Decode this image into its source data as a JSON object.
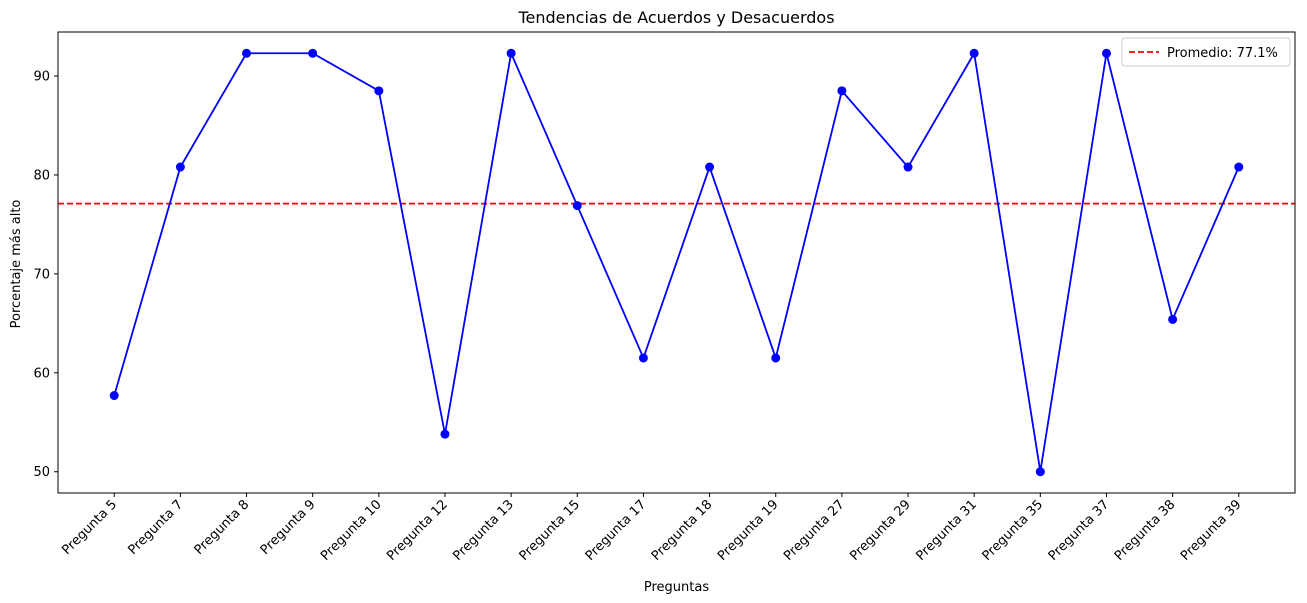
{
  "chart_data": {
    "type": "line",
    "title": "Tendencias de Acuerdos y Desacuerdos",
    "xlabel": "Preguntas",
    "ylabel": "Porcentaje más alto",
    "categories": [
      "Pregunta 5",
      "Pregunta 7",
      "Pregunta 8",
      "Pregunta 9",
      "Pregunta 10",
      "Pregunta 12",
      "Pregunta 13",
      "Pregunta 15",
      "Pregunta 17",
      "Pregunta 18",
      "Pregunta 19",
      "Pregunta 27",
      "Pregunta 29",
      "Pregunta 31",
      "Pregunta 35",
      "Pregunta 37",
      "Pregunta 38",
      "Pregunta 39"
    ],
    "series": [
      {
        "color": "#0000ff",
        "marker": "circle",
        "values": [
          57.7,
          80.8,
          92.3,
          92.3,
          88.5,
          53.8,
          92.3,
          76.9,
          61.5,
          80.8,
          61.5,
          88.5,
          80.8,
          92.3,
          50.0,
          92.3,
          65.4,
          80.8
        ]
      }
    ],
    "reference_line": {
      "label": "Promedio: 77.1%",
      "value": 77.1,
      "color": "#ff0000",
      "style": "dashed"
    },
    "yticks": [
      50,
      60,
      70,
      80,
      90
    ],
    "ylim": [
      47.85,
      94.45
    ],
    "grid": false,
    "legend": {
      "placement": "top-right",
      "entries": [
        "Promedio: 77.1%"
      ]
    }
  }
}
